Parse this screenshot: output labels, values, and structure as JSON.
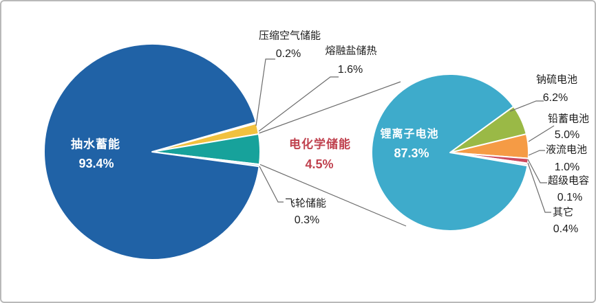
{
  "chart_data": {
    "type": "pie",
    "subtype": "pie-of-pie",
    "unit": "percent",
    "legend": "none",
    "parent": {
      "slices": [
        {
          "id": "pumped-hydro",
          "label": "抽水蓄能",
          "pct": "93.4%",
          "value": 93.4,
          "color": "#2062a6"
        },
        {
          "id": "compressed-air",
          "label": "压缩空气储能",
          "pct": "0.2%",
          "value": 0.2,
          "color": "#9dc3e6"
        },
        {
          "id": "molten-salt",
          "label": "熔融盐储热",
          "pct": "1.6%",
          "value": 1.6,
          "color": "#f1c13f"
        },
        {
          "id": "electrochemical",
          "label": "电化学储能",
          "pct": "4.5%",
          "value": 4.5,
          "color": "#17a29b"
        },
        {
          "id": "flywheel",
          "label": "飞轮储能",
          "pct": "0.3%",
          "value": 0.3,
          "color": "#bdd7ee"
        }
      ]
    },
    "child": {
      "parent_slice": "电化学储能",
      "slices": [
        {
          "id": "lithium-ion",
          "label": "锂离子电池",
          "pct": "87.3%",
          "value": 87.3,
          "color": "#3eabcb"
        },
        {
          "id": "sodium-sulfur",
          "label": "钠硫电池",
          "pct": "6.2%",
          "value": 6.2,
          "color": "#9ab946"
        },
        {
          "id": "lead-acid",
          "label": "铅蓄电池",
          "pct": "5.0%",
          "value": 5.0,
          "color": "#f59b45"
        },
        {
          "id": "flow-battery",
          "label": "液流电池",
          "pct": "1.0%",
          "value": 1.0,
          "color": "#cc4a5e"
        },
        {
          "id": "supercapacitor",
          "label": "超级电容",
          "pct": "0.1%",
          "value": 0.1,
          "color": "#e6b9b8"
        },
        {
          "id": "others",
          "label": "其它",
          "pct": "0.4%",
          "value": 0.4,
          "color": "#d9d9d9"
        }
      ]
    }
  },
  "colors": {
    "highlight_red": "#c0424f",
    "label_text": "#1c1c1c",
    "inside_label_text": "#ffffff",
    "leader_line": "#6b6b6b",
    "slice_border": "#ffffff",
    "background": "#ffffff"
  }
}
